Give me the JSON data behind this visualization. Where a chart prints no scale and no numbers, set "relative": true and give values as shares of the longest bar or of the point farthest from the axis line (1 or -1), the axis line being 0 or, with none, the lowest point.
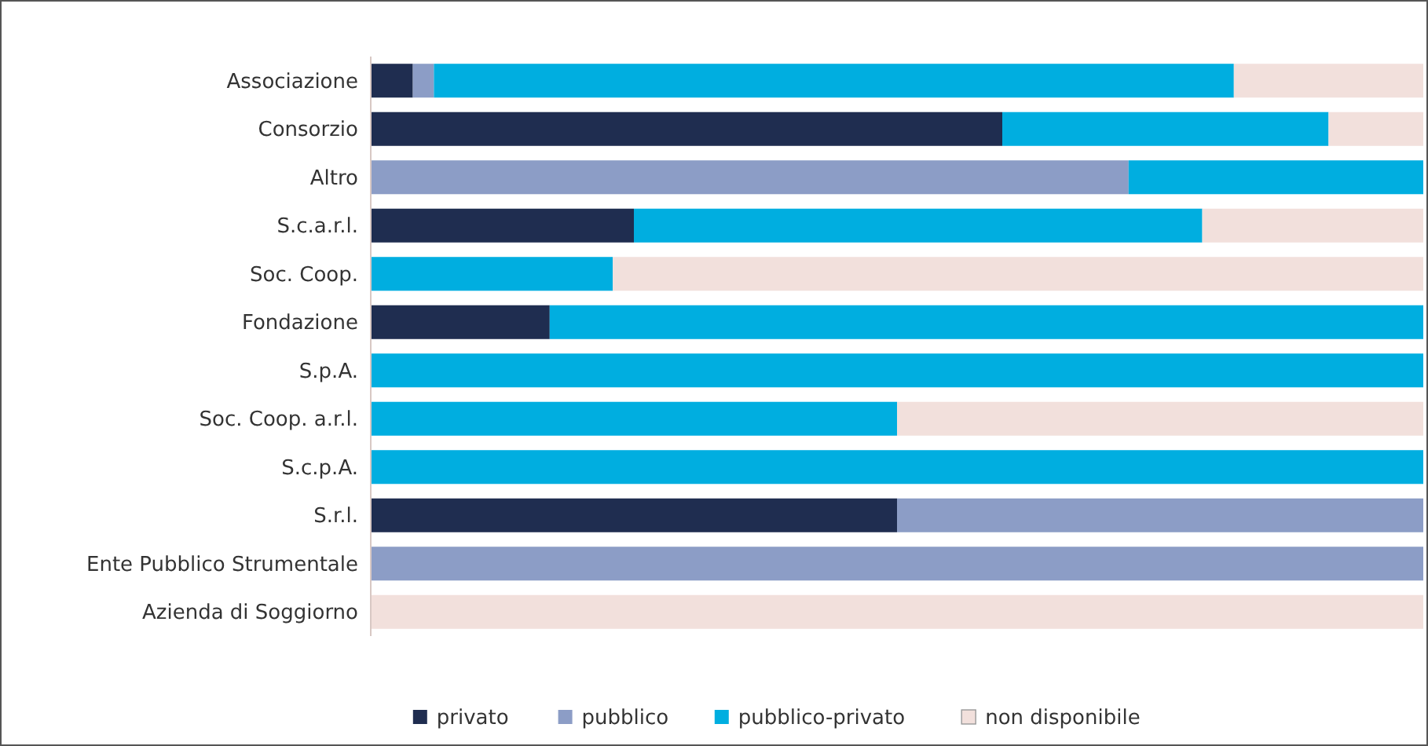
{
  "chart_data": {
    "type": "bar",
    "orientation": "horizontal",
    "stacked": true,
    "relative": true,
    "legend": "bottom",
    "categories": [
      "Associazione",
      "Consorzio",
      "Altro",
      "S.c.a.r.l.",
      "Soc. Coop.",
      "Fondazione",
      "S.p.A.",
      "Soc. Coop. a.r.l.",
      "S.c.p.A.",
      "S.r.l.",
      "Ente Pubblico Strumentale",
      "Azienda di Soggiorno"
    ],
    "series": [
      {
        "name": "privato",
        "color": "#1f2d50",
        "values": [
          0.04,
          0.6,
          0,
          0.25,
          0,
          0.17,
          0,
          0,
          0,
          0.5,
          0,
          0
        ]
      },
      {
        "name": "pubblico",
        "color": "#8c9dc6",
        "values": [
          0.02,
          0,
          0.72,
          0,
          0,
          0,
          0,
          0,
          0,
          0.5,
          1,
          0
        ]
      },
      {
        "name": "pubblico-privato",
        "color": "#00aee0",
        "values": [
          0.76,
          0.31,
          0.28,
          0.54,
          0.23,
          0.83,
          1,
          0.5,
          1,
          0,
          0,
          0
        ]
      },
      {
        "name": "non disponibile",
        "color": "#f2e0dc",
        "values": [
          0.18,
          0.09,
          0,
          0.21,
          0.77,
          0,
          0,
          0.5,
          0,
          0,
          0,
          1
        ]
      }
    ]
  }
}
